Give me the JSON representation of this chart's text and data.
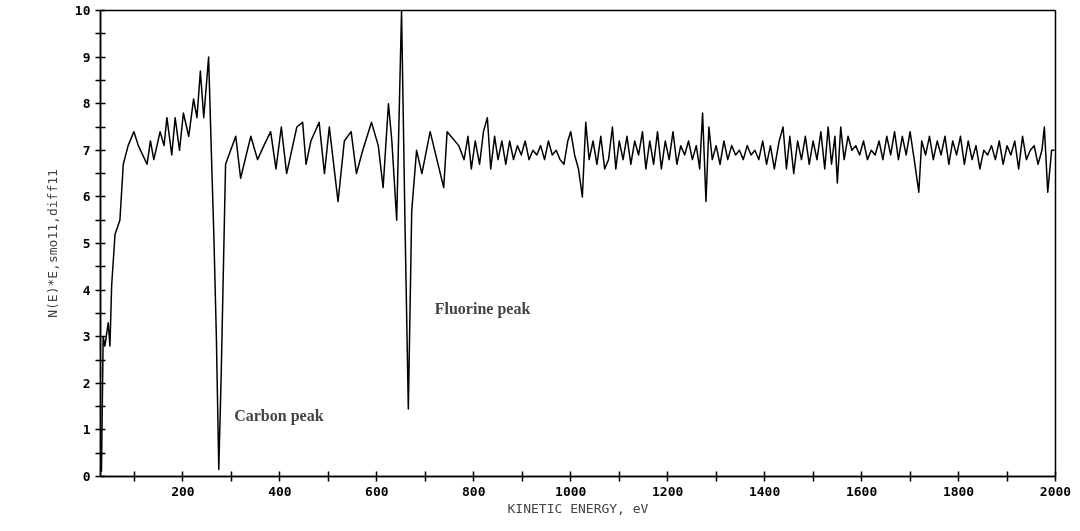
{
  "chart_data": {
    "type": "line",
    "xlabel": "KINETIC ENERGY, eV",
    "ylabel": "N(E)*E,smo11,diff11",
    "xlim": [
      30,
      2000
    ],
    "ylim": [
      0,
      10
    ],
    "xticks": [
      {
        "value": 100,
        "label": null
      },
      200,
      {
        "value": 300,
        "label": null
      },
      400,
      {
        "value": 500,
        "label": null
      },
      600,
      {
        "value": 700,
        "label": null
      },
      800,
      {
        "value": 900,
        "label": null
      },
      1000,
      {
        "value": 1100,
        "label": null
      },
      1200,
      {
        "value": 1300,
        "label": null
      },
      1400,
      {
        "value": 1500,
        "label": null
      },
      1600,
      {
        "value": 1700,
        "label": null
      },
      1800,
      {
        "value": 1900,
        "label": null
      },
      2000
    ],
    "yticks": [
      0,
      {
        "value": 0.5,
        "label": null
      },
      1,
      {
        "value": 1.5,
        "label": null
      },
      2,
      {
        "value": 2.5,
        "label": null
      },
      3,
      {
        "value": 3.5,
        "label": null
      },
      4,
      {
        "value": 4.5,
        "label": null
      },
      5,
      {
        "value": 5.5,
        "label": null
      },
      6,
      {
        "value": 6.5,
        "label": null
      },
      7,
      {
        "value": 7.5,
        "label": null
      },
      8,
      {
        "value": 8.5,
        "label": null
      },
      9,
      {
        "value": 9.5,
        "label": null
      },
      10
    ],
    "grid": false,
    "marker": "none",
    "line_style": "solid",
    "annotations": [
      "Carbon peak",
      "Fluorine peak"
    ],
    "series": [
      {
        "color": "#000000",
        "x": [
          32,
          35.5,
          39,
          46,
          49.5,
          53,
          60,
          70,
          77,
          87,
          99,
          108,
          126,
          133,
          140,
          153,
          161,
          167,
          177,
          184,
          193,
          201,
          212,
          222,
          229,
          236,
          243,
          253,
          258,
          264,
          269,
          274,
          279,
          288,
          309,
          319,
          340,
          354,
          367,
          381,
          392,
          403,
          414,
          435,
          447,
          454,
          464,
          481,
          492,
          502,
          520,
          533,
          547,
          558,
          571,
          589,
          603,
          613,
          624,
          631,
          641,
          651,
          658,
          665,
          672,
          682,
          693,
          710,
          738,
          745,
          769,
          780,
          788,
          795,
          803,
          812,
          820,
          828,
          835,
          843,
          850,
          858,
          866,
          874,
          882,
          890,
          898,
          906,
          914,
          922,
          930,
          938,
          946,
          954,
          962,
          970,
          978,
          986,
          994,
          1000,
          1008,
          1016,
          1024,
          1031,
          1038,
          1046,
          1054,
          1062,
          1070,
          1078,
          1086,
          1093,
          1100,
          1108,
          1116,
          1124,
          1132,
          1140,
          1148,
          1155,
          1163,
          1171,
          1179,
          1187,
          1195,
          1203,
          1211,
          1219,
          1227,
          1235,
          1243,
          1251,
          1259,
          1266,
          1272,
          1279,
          1285,
          1292,
          1300,
          1308,
          1316,
          1324,
          1332,
          1340,
          1348,
          1356,
          1364,
          1372,
          1380,
          1388,
          1396,
          1404,
          1412,
          1420,
          1430,
          1438,
          1445,
          1452,
          1460,
          1468,
          1476,
          1484,
          1492,
          1500,
          1508,
          1516,
          1524,
          1531,
          1538,
          1545,
          1550,
          1557,
          1564,
          1572,
          1580,
          1588,
          1596,
          1604,
          1612,
          1620,
          1628,
          1636,
          1644,
          1652,
          1660,
          1668,
          1676,
          1684,
          1692,
          1700,
          1710,
          1718,
          1724,
          1732,
          1740,
          1748,
          1756,
          1764,
          1772,
          1780,
          1788,
          1796,
          1804,
          1812,
          1820,
          1828,
          1836,
          1844,
          1852,
          1860,
          1868,
          1876,
          1884,
          1892,
          1900,
          1908,
          1916,
          1924,
          1932,
          1940,
          1948,
          1956,
          1964,
          1972,
          1977,
          1984,
          1992,
          1998
        ],
        "values": [
          0.1,
          3.0,
          2.8,
          3.3,
          2.8,
          4.1,
          5.2,
          5.5,
          6.7,
          7.1,
          7.4,
          7.1,
          6.7,
          7.2,
          6.8,
          7.4,
          7.1,
          7.7,
          6.9,
          7.7,
          7.0,
          7.8,
          7.3,
          8.1,
          7.7,
          8.7,
          7.7,
          9.0,
          7.2,
          5.1,
          3.0,
          0.15,
          2.2,
          6.7,
          7.3,
          6.4,
          7.3,
          6.8,
          7.1,
          7.4,
          6.6,
          7.5,
          6.5,
          7.5,
          7.6,
          6.7,
          7.2,
          7.6,
          6.5,
          7.5,
          5.9,
          7.2,
          7.4,
          6.5,
          7.0,
          7.6,
          7.1,
          6.2,
          8.0,
          7.2,
          5.5,
          10.0,
          5.5,
          1.45,
          5.7,
          7.0,
          6.5,
          7.4,
          6.2,
          7.4,
          7.1,
          6.8,
          7.3,
          6.6,
          7.2,
          6.7,
          7.4,
          7.7,
          6.6,
          7.3,
          6.8,
          7.2,
          6.7,
          7.2,
          6.8,
          7.1,
          6.9,
          7.2,
          6.8,
          7.0,
          6.9,
          7.1,
          6.8,
          7.2,
          6.9,
          7.0,
          6.8,
          6.7,
          7.2,
          7.4,
          6.9,
          6.6,
          6.0,
          7.6,
          6.8,
          7.2,
          6.7,
          7.3,
          6.6,
          6.8,
          7.5,
          6.6,
          7.2,
          6.8,
          7.3,
          6.7,
          7.2,
          6.9,
          7.4,
          6.6,
          7.2,
          6.7,
          7.4,
          6.6,
          7.2,
          6.8,
          7.4,
          6.7,
          7.1,
          6.9,
          7.2,
          6.8,
          7.1,
          6.6,
          7.8,
          5.9,
          7.5,
          6.8,
          7.1,
          6.7,
          7.2,
          6.8,
          7.1,
          6.9,
          7.0,
          6.8,
          7.1,
          6.9,
          7.0,
          6.8,
          7.2,
          6.7,
          7.1,
          6.6,
          7.2,
          7.5,
          6.6,
          7.3,
          6.5,
          7.2,
          6.8,
          7.3,
          6.7,
          7.2,
          6.8,
          7.4,
          6.6,
          7.5,
          6.7,
          7.3,
          6.3,
          7.5,
          6.8,
          7.3,
          7.0,
          7.1,
          6.9,
          7.2,
          6.8,
          7.0,
          6.9,
          7.2,
          6.8,
          7.3,
          6.9,
          7.4,
          6.8,
          7.3,
          6.9,
          7.4,
          6.7,
          6.1,
          7.2,
          6.9,
          7.3,
          6.8,
          7.2,
          6.9,
          7.3,
          6.7,
          7.2,
          6.9,
          7.3,
          6.7,
          7.2,
          6.8,
          7.1,
          6.6,
          7.0,
          6.9,
          7.1,
          6.8,
          7.2,
          6.7,
          7.1,
          6.9,
          7.2,
          6.6,
          7.3,
          6.8,
          7.0,
          7.1,
          6.7,
          7.0,
          7.5,
          6.1,
          7.0,
          7.0
        ]
      }
    ]
  }
}
